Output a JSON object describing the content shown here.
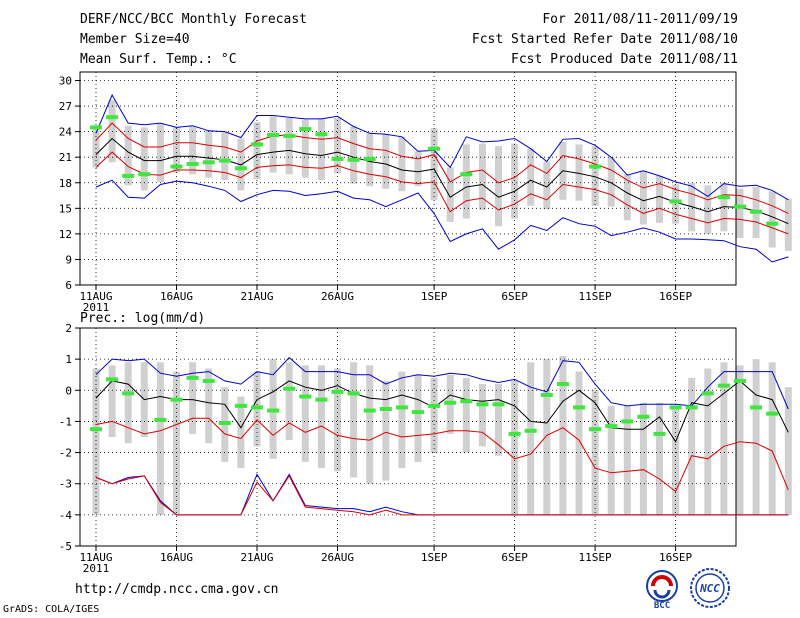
{
  "header": {
    "title": "DERF/NCC/BCC Monthly Forecast",
    "member_size": "Member Size=40",
    "variable": "Mean Surf. Temp.: °C",
    "forecast_period": "For 2011/08/11-2011/09/19",
    "started_date": "Fcst Started Refer Date 2011/08/10",
    "produced_date": "Fcst Produced Date 2011/08/11"
  },
  "footer": {
    "url": "http://cmdp.ncc.cma.gov.cn",
    "grads": "GrADS: COLA/IGES",
    "logo_bcc": "BCC",
    "logo_ncc": "NCC"
  },
  "chart_data": [
    {
      "type": "line",
      "title": "Mean Surf. Temp.: °C",
      "ylim": [
        6,
        31
      ],
      "yticks": [
        6,
        9,
        12,
        15,
        18,
        21,
        24,
        27,
        30
      ],
      "xticks": [
        "11AUG",
        "16AUG",
        "21AUG",
        "26AUG",
        "1SEP",
        "6SEP",
        "11SEP",
        "16SEP"
      ],
      "xtick_index": [
        0,
        5,
        10,
        15,
        21,
        26,
        31,
        36
      ],
      "year_label": "2011",
      "colors": {
        "max_min": "#0000cc",
        "spread": "#dd0000",
        "mean": "#000000",
        "box": "#d0d0d0",
        "observed": "#3ee63e"
      },
      "mean": [
        21.3,
        23.2,
        21.6,
        20.6,
        20.6,
        21.1,
        21.1,
        20.9,
        20.7,
        20.1,
        21.3,
        21.6,
        21.8,
        21.4,
        21.2,
        21.6,
        21.0,
        20.5,
        20.2,
        19.5,
        19.3,
        19.6,
        16.3,
        17.5,
        17.8,
        16.3,
        17.0,
        18.3,
        17.5,
        19.4,
        19.1,
        18.7,
        18.0,
        16.8,
        15.9,
        16.4,
        15.7,
        15.2,
        14.6,
        15.2,
        15.1,
        14.7,
        14.0,
        13.2
      ],
      "upper_red": [
        23.0,
        25.0,
        23.2,
        22.2,
        22.2,
        22.7,
        22.7,
        22.4,
        22.2,
        21.6,
        22.9,
        23.5,
        23.6,
        23.3,
        23.1,
        23.3,
        22.6,
        22.0,
        21.8,
        21.1,
        20.8,
        21.3,
        18.1,
        19.2,
        19.5,
        18.0,
        18.6,
        20.1,
        19.1,
        21.2,
        20.8,
        20.2,
        19.5,
        18.3,
        17.4,
        17.9,
        17.2,
        16.7,
        16.0,
        16.6,
        16.5,
        16.0,
        15.3,
        14.4
      ],
      "lower_red": [
        19.8,
        21.6,
        19.9,
        19.0,
        18.9,
        19.5,
        19.5,
        19.4,
        19.2,
        18.6,
        19.8,
        20.0,
        20.1,
        19.8,
        19.7,
        20.0,
        19.4,
        19.0,
        18.7,
        18.1,
        17.9,
        18.1,
        14.6,
        15.9,
        16.2,
        14.8,
        15.5,
        16.7,
        16.0,
        17.8,
        17.5,
        17.2,
        16.6,
        15.4,
        14.4,
        15.0,
        14.3,
        13.8,
        13.3,
        13.8,
        13.7,
        13.4,
        12.7,
        12.0
      ],
      "max": [
        23.8,
        28.3,
        25.0,
        24.8,
        25.0,
        24.5,
        24.7,
        24.1,
        24.0,
        23.3,
        25.9,
        25.9,
        25.7,
        25.5,
        25.5,
        25.8,
        24.6,
        23.8,
        23.7,
        23.4,
        21.7,
        21.8,
        19.8,
        23.4,
        22.8,
        22.9,
        23.2,
        22.0,
        20.5,
        23.1,
        23.2,
        22.4,
        21.0,
        18.9,
        19.4,
        18.8,
        18.1,
        17.6,
        16.4,
        17.9,
        17.6,
        17.7,
        17.1,
        16.0
      ],
      "min": [
        17.5,
        18.3,
        16.3,
        16.2,
        17.8,
        18.2,
        18.0,
        17.6,
        17.1,
        15.8,
        16.6,
        17.1,
        17.0,
        16.5,
        16.7,
        17.0,
        16.2,
        16.0,
        15.2,
        16.0,
        16.8,
        14.4,
        11.1,
        12.0,
        12.6,
        10.2,
        11.3,
        13.0,
        12.4,
        13.9,
        13.2,
        12.9,
        11.8,
        12.2,
        12.7,
        12.2,
        11.4,
        11.4,
        11.3,
        11.2,
        10.5,
        10.2,
        8.7,
        9.3
      ],
      "box_high": [
        24.4,
        27.7,
        24.7,
        24.5,
        24.9,
        24.5,
        24.6,
        24.1,
        24.0,
        23.2,
        25.1,
        25.8,
        25.6,
        25.4,
        25.5,
        25.6,
        24.6,
        23.8,
        23.7,
        23.4,
        21.7,
        24.4,
        19.8,
        22.5,
        22.6,
        22.3,
        22.6,
        22.0,
        20.5,
        22.8,
        22.5,
        22.3,
        21.0,
        19.0,
        19.4,
        18.8,
        17.8,
        18.0,
        17.7,
        18.0,
        17.3,
        17.5,
        17.0,
        16.1
      ],
      "box_low": [
        19.8,
        20.4,
        17.7,
        17.1,
        18.1,
        19.2,
        19.0,
        18.6,
        18.3,
        17.1,
        18.4,
        19.2,
        19.0,
        18.6,
        18.3,
        19.1,
        17.9,
        17.6,
        17.3,
        17.0,
        17.6,
        16.0,
        13.4,
        13.8,
        14.8,
        12.9,
        13.8,
        15.3,
        14.9,
        16.0,
        15.9,
        15.3,
        15.2,
        13.6,
        13.1,
        13.3,
        13.2,
        12.3,
        12.0,
        12.3,
        11.5,
        11.5,
        10.4,
        10.0
      ],
      "observed": [
        24.5,
        25.7,
        18.8,
        19.0,
        null,
        19.9,
        20.2,
        20.4,
        20.6,
        19.7,
        22.5,
        23.6,
        23.5,
        24.3,
        23.7,
        20.8,
        20.7,
        20.8,
        null,
        null,
        null,
        22.0,
        null,
        19.0,
        null,
        null,
        null,
        null,
        null,
        null,
        null,
        19.9,
        null,
        null,
        null,
        null,
        15.8,
        null,
        null,
        16.3,
        15.2,
        14.6,
        13.2,
        null
      ]
    },
    {
      "type": "line",
      "title": "Prec.: log(mm/d)",
      "ylim": [
        -5,
        2
      ],
      "yticks": [
        -5,
        -4,
        -3,
        -2,
        -1,
        0,
        1,
        2
      ],
      "xticks": [
        "11AUG",
        "16AUG",
        "21AUG",
        "26AUG",
        "1SEP",
        "6SEP",
        "11SEP",
        "16SEP"
      ],
      "xtick_index": [
        0,
        5,
        10,
        15,
        21,
        26,
        31,
        36
      ],
      "year_label": "2011",
      "colors": {
        "max": "#0000cc",
        "min_line": "#0000cc",
        "upper": "#000000",
        "lower": "#dd0000",
        "box": "#d0d0d0",
        "observed": "#3ee63e"
      },
      "max": [
        0.5,
        1.0,
        0.95,
        1.0,
        0.55,
        0.45,
        0.55,
        0.6,
        0.3,
        0.2,
        0.6,
        0.5,
        1.05,
        0.6,
        0.6,
        0.6,
        0.5,
        0.5,
        0.2,
        0.4,
        0.5,
        0.45,
        0.55,
        0.5,
        0.35,
        0.25,
        0.35,
        0.1,
        -0.05,
        0.95,
        0.9,
        0.2,
        -0.4,
        -0.5,
        -0.45,
        -0.45,
        -0.45,
        -0.5,
        0.1,
        0.6,
        0.6,
        0.6,
        0.6,
        -0.6
      ],
      "upper": [
        -0.25,
        0.3,
        0.2,
        -0.3,
        -0.2,
        -0.3,
        -0.3,
        -0.4,
        -0.45,
        -1.2,
        -0.3,
        -0.05,
        0.3,
        0.1,
        0.0,
        0.15,
        -0.1,
        -0.25,
        -0.3,
        -0.15,
        -0.3,
        -0.55,
        -0.15,
        -0.3,
        -0.35,
        -0.3,
        -0.5,
        -1.0,
        -1.05,
        -0.35,
        0.0,
        -0.4,
        -1.2,
        -1.25,
        -1.25,
        -0.85,
        -1.65,
        -0.4,
        -0.5,
        -0.1,
        0.3,
        -0.15,
        -0.3,
        -1.35
      ],
      "lower": [
        -2.8,
        -3.0,
        -2.8,
        -2.75,
        -3.55,
        -4.0,
        -4.0,
        -4.0,
        -4.0,
        -4.0,
        -2.7,
        -3.55,
        -2.7,
        -3.7,
        -3.75,
        -3.8,
        -3.8,
        -3.9,
        -3.75,
        -3.9,
        -4.0,
        -4.0,
        -4.0,
        -4.0,
        -4.0,
        -4.0,
        -4.0,
        -4.0,
        -4.0,
        -4.0,
        -4.0,
        -4.0,
        -4.0,
        -4.0,
        -4.0,
        -4.0,
        -4.0,
        -4.0,
        -4.0,
        -4.0,
        -4.0,
        -4.0,
        -4.0,
        -4.0
      ],
      "lower_red": [
        -2.8,
        -3.0,
        -2.85,
        -2.75,
        -3.6,
        -4.0,
        -4.0,
        -4.0,
        -4.0,
        -4.0,
        -2.95,
        -3.55,
        -2.75,
        -3.75,
        -3.8,
        -3.85,
        -3.9,
        -4.0,
        -3.85,
        -4.0,
        -4.0,
        -4.0,
        -4.0,
        -4.0,
        -4.0,
        -4.0,
        -4.0,
        -4.0,
        -4.0,
        -4.0,
        -4.0,
        -4.0,
        -4.0,
        -4.0,
        -4.0,
        -4.0,
        -4.0,
        -4.0,
        -4.0,
        -4.0,
        -4.0,
        -4.0,
        -4.0,
        -4.0
      ],
      "middle_red": [
        -1.1,
        -1.0,
        -1.2,
        -1.4,
        -1.3,
        -1.1,
        -0.9,
        -0.9,
        -1.4,
        -1.55,
        -0.95,
        -1.45,
        -1.05,
        -1.35,
        -1.15,
        -1.45,
        -1.55,
        -1.6,
        -1.35,
        -1.5,
        -1.45,
        -1.4,
        -1.3,
        -1.3,
        -1.35,
        -1.75,
        -2.2,
        -2.05,
        -1.45,
        -1.2,
        -1.6,
        -2.5,
        -2.65,
        -2.6,
        -2.55,
        -2.85,
        -3.25,
        -2.1,
        -2.2,
        -1.8,
        -1.65,
        -1.7,
        -1.95,
        -3.2
      ],
      "box_high": [
        0.7,
        0.8,
        0.9,
        0.9,
        0.9,
        0.6,
        0.9,
        0.7,
        0.1,
        -0.2,
        0.6,
        1.0,
        0.9,
        0.8,
        0.8,
        0.7,
        0.9,
        0.8,
        0.3,
        0.6,
        0.5,
        0.4,
        0.5,
        0.4,
        0.2,
        0.2,
        0.3,
        0.9,
        1.0,
        1.1,
        0.6,
        0.0,
        -0.5,
        -0.5,
        -0.4,
        -0.4,
        -0.5,
        0.4,
        0.7,
        0.9,
        0.8,
        1.0,
        0.9,
        0.1
      ],
      "box_low": [
        -4.0,
        -1.5,
        -1.7,
        -1.5,
        -4.0,
        -4.0,
        -1.4,
        -1.7,
        -2.3,
        -2.5,
        -1.8,
        -2.2,
        -1.6,
        -2.3,
        -2.5,
        -2.6,
        -2.8,
        -3.0,
        -2.9,
        -2.5,
        -2.3,
        -2.0,
        -1.4,
        -2.0,
        -1.8,
        -2.1,
        -4.0,
        -4.0,
        -4.0,
        -4.0,
        -4.0,
        -4.0,
        -4.0,
        -4.0,
        -4.0,
        -4.0,
        -4.0,
        -4.0,
        -4.0,
        -4.0,
        -4.0,
        -4.0,
        -4.0,
        -4.0
      ],
      "observed": [
        -1.25,
        0.35,
        -0.1,
        null,
        -0.95,
        -0.3,
        0.4,
        0.3,
        -1.05,
        -0.5,
        -0.55,
        -0.65,
        0.05,
        -0.2,
        -0.3,
        -0.05,
        -0.1,
        -0.65,
        -0.6,
        -0.55,
        -0.7,
        -0.5,
        -0.4,
        -0.35,
        -0.45,
        -0.45,
        -1.4,
        -1.3,
        -0.15,
        0.2,
        -0.55,
        -1.25,
        -1.15,
        -1.0,
        -0.85,
        -1.4,
        -0.55,
        -0.55,
        -0.1,
        0.15,
        0.3,
        -0.55,
        -0.75,
        null
      ]
    }
  ]
}
